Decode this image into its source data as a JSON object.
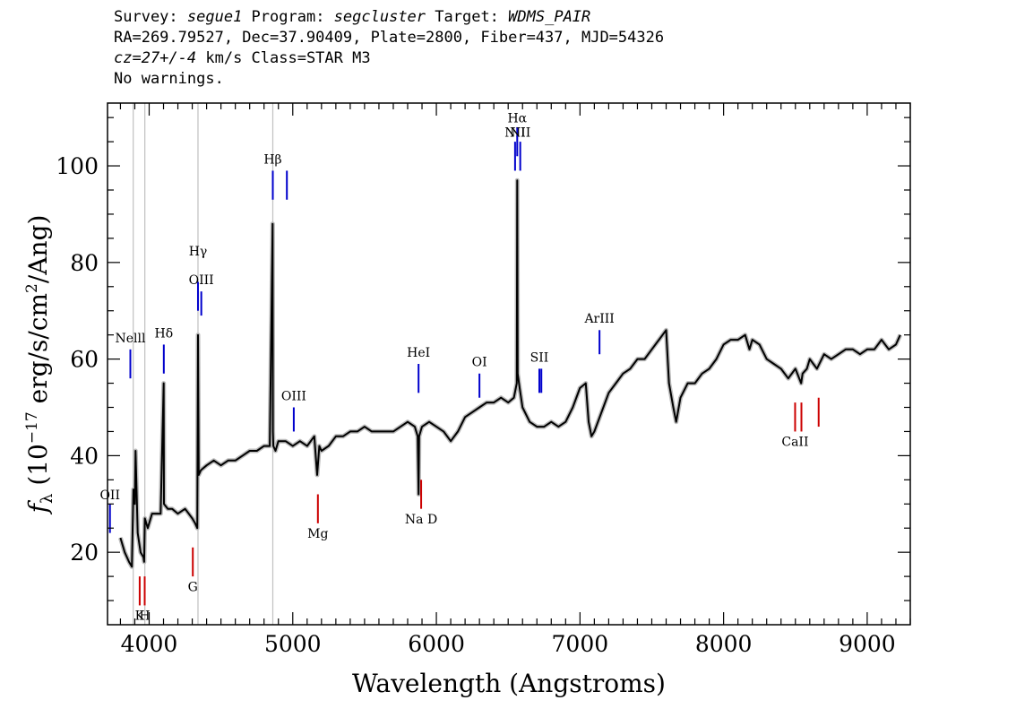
{
  "header": {
    "survey_label": "Survey: ",
    "survey": "segue1",
    "program_label": " Program: ",
    "program": "segcluster",
    "target_label": " Target: ",
    "target": "WDMS_PAIR",
    "line2": "RA=269.79527, Dec=37.90409, Plate=2800, Fiber=437, MJD=54326",
    "cz": "cz=27+/-4",
    "line3_rest": " km/s Class=STAR M3",
    "line4": "No warnings."
  },
  "chart_data": {
    "type": "line",
    "title": "",
    "xlabel": "Wavelength (Angstroms)",
    "ylabel_prefix": "f",
    "ylabel_sub": "λ",
    "ylabel_main": " (10",
    "ylabel_exp": "−17",
    "ylabel_mid": " erg/s/cm",
    "ylabel_exp2": "2",
    "ylabel_end": "/Ang)",
    "xlim": [
      3710,
      9300
    ],
    "ylim": [
      5,
      113
    ],
    "xticks": [
      4000,
      5000,
      6000,
      7000,
      8000,
      9000
    ],
    "yticks": [
      20,
      40,
      60,
      80,
      100
    ],
    "series": [
      {
        "color": "#000000",
        "error_color": "#bbbbbb",
        "x": [
          3800,
          3830,
          3860,
          3880,
          3890,
          3900,
          3905,
          3920,
          3940,
          3960,
          3965,
          3970,
          3990,
          4020,
          4050,
          4080,
          4101,
          4103,
          4130,
          4160,
          4200,
          4250,
          4300,
          4320,
          4335,
          4340,
          4345,
          4360,
          4400,
          4450,
          4500,
          4550,
          4600,
          4650,
          4700,
          4750,
          4800,
          4840,
          4860,
          4862,
          4865,
          4880,
          4900,
          4950,
          5000,
          5050,
          5100,
          5150,
          5170,
          5185,
          5200,
          5250,
          5300,
          5350,
          5400,
          5450,
          5500,
          5550,
          5600,
          5650,
          5700,
          5750,
          5800,
          5850,
          5870,
          5876,
          5880,
          5890,
          5900,
          5950,
          6000,
          6050,
          6100,
          6150,
          6200,
          6250,
          6300,
          6350,
          6400,
          6450,
          6500,
          6540,
          6560,
          6563,
          6566,
          6580,
          6600,
          6650,
          6700,
          6750,
          6800,
          6850,
          6900,
          6950,
          7000,
          7040,
          7060,
          7080,
          7100,
          7150,
          7200,
          7250,
          7300,
          7350,
          7400,
          7450,
          7500,
          7550,
          7600,
          7620,
          7650,
          7670,
          7700,
          7750,
          7800,
          7850,
          7900,
          7950,
          8000,
          8050,
          8100,
          8150,
          8180,
          8200,
          8250,
          8300,
          8350,
          8400,
          8450,
          8500,
          8540,
          8550,
          8580,
          8600,
          8650,
          8700,
          8750,
          8800,
          8850,
          8900,
          8950,
          9000,
          9050,
          9100,
          9150,
          9200,
          9230
        ],
        "y": [
          23,
          20,
          18,
          17,
          33,
          30,
          41,
          24,
          20,
          19,
          18,
          27,
          25,
          28,
          28,
          28,
          55,
          30,
          29,
          29,
          28,
          29,
          27,
          26,
          25,
          65,
          36,
          37,
          38,
          39,
          38,
          39,
          39,
          40,
          41,
          41,
          42,
          42,
          88,
          45,
          42,
          41,
          43,
          43,
          42,
          43,
          42,
          44,
          36,
          42,
          41,
          42,
          44,
          44,
          45,
          45,
          46,
          45,
          45,
          45,
          45,
          46,
          47,
          46,
          44,
          32,
          44,
          45,
          46,
          47,
          46,
          45,
          43,
          45,
          48,
          49,
          50,
          51,
          51,
          52,
          51,
          52,
          55,
          97,
          57,
          54,
          50,
          47,
          46,
          46,
          47,
          46,
          47,
          50,
          54,
          55,
          47,
          44,
          45,
          49,
          53,
          55,
          57,
          58,
          60,
          60,
          62,
          64,
          66,
          55,
          50,
          47,
          52,
          55,
          55,
          57,
          58,
          60,
          63,
          64,
          64,
          65,
          62,
          64,
          63,
          60,
          59,
          58,
          56,
          58,
          55,
          57,
          58,
          60,
          58,
          61,
          60,
          61,
          62,
          62,
          61,
          62,
          62,
          64,
          62,
          63,
          65
        ]
      }
    ],
    "markers": [
      {
        "label": "Nelll",
        "wave": 3869,
        "color": "#0000cc",
        "y1": 56,
        "y2": 62,
        "label_y": 63.5
      },
      {
        "label": "Hδ",
        "wave": 4102,
        "color": "#0000cc",
        "y1": 57,
        "y2": 63,
        "label_y": 64.5
      },
      {
        "label": "Hγ",
        "wave": 4340,
        "color": "#0000cc",
        "y1": 70,
        "y2": 76,
        "label_y": 81.5
      },
      {
        "label": "OIII",
        "wave": 4363,
        "color": "#0000cc",
        "y1": 69,
        "y2": 74,
        "label_y": 75.5
      },
      {
        "label": "Hβ",
        "wave": 4861,
        "color": "#0000cc",
        "y1": 93,
        "y2": 99,
        "label_y": 100.5
      },
      {
        "label": "",
        "wave": 4959,
        "color": "#0000cc",
        "y1": 93,
        "y2": 99,
        "label_y": 0
      },
      {
        "label": "OIII",
        "wave": 5007,
        "color": "#0000cc",
        "y1": 45,
        "y2": 50,
        "label_y": 51.5
      },
      {
        "label": "HeI",
        "wave": 5876,
        "color": "#0000cc",
        "y1": 53,
        "y2": 59,
        "label_y": 60.5
      },
      {
        "label": "OI",
        "wave": 6300,
        "color": "#0000cc",
        "y1": 52,
        "y2": 57,
        "label_y": 58.5
      },
      {
        "label": "NII",
        "wave": 6548,
        "color": "#0000cc",
        "y1": 99,
        "y2": 105,
        "label_y": 106
      },
      {
        "label": "Hα",
        "wave": 6563,
        "color": "#0000cc",
        "y1": 102,
        "y2": 108,
        "label_y": 109
      },
      {
        "label": "NII",
        "wave": 6584,
        "color": "#0000cc",
        "y1": 99,
        "y2": 105,
        "label_y": 106
      },
      {
        "label": "SII",
        "wave": 6717,
        "color": "#0000cc",
        "y1": 53,
        "y2": 58,
        "label_y": 59.5
      },
      {
        "label": "",
        "wave": 6731,
        "color": "#0000cc",
        "y1": 53,
        "y2": 58,
        "label_y": 0
      },
      {
        "label": "ArIII",
        "wave": 7136,
        "color": "#0000cc",
        "y1": 61,
        "y2": 66,
        "label_y": 67.5
      },
      {
        "label": "OII",
        "wave": 3727,
        "color": "#0000cc",
        "y1": 24,
        "y2": 30,
        "label_y": 31
      },
      {
        "label": "K",
        "wave": 3934,
        "color": "#cc0000",
        "y1": 9,
        "y2": 15,
        "label_y": 6,
        "below": true
      },
      {
        "label": "H",
        "wave": 3969,
        "color": "#cc0000",
        "y1": 9,
        "y2": 15,
        "label_y": 6,
        "below": true
      },
      {
        "label": "G",
        "wave": 4304,
        "color": "#cc0000",
        "y1": 15,
        "y2": 21,
        "label_y": 12,
        "below": true
      },
      {
        "label": "Mg",
        "wave": 5175,
        "color": "#cc0000",
        "y1": 26,
        "y2": 32,
        "label_y": 23,
        "below": true
      },
      {
        "label": "Na D",
        "wave": 5894,
        "color": "#cc0000",
        "y1": 29,
        "y2": 35,
        "label_y": 26,
        "below": true
      },
      {
        "label": "CaII",
        "wave": 8498,
        "color": "#cc0000",
        "y1": 45,
        "y2": 51,
        "label_y": 42,
        "below": true
      },
      {
        "label": "",
        "wave": 8542,
        "color": "#cc0000",
        "y1": 45,
        "y2": 51,
        "label_y": 0
      },
      {
        "label": "",
        "wave": 8662,
        "color": "#cc0000",
        "y1": 46,
        "y2": 52,
        "label_y": 0
      }
    ],
    "vertical_lines": [
      3889,
      3970,
      4340,
      4861
    ],
    "vertical_line_color": "#c0c0c0"
  }
}
